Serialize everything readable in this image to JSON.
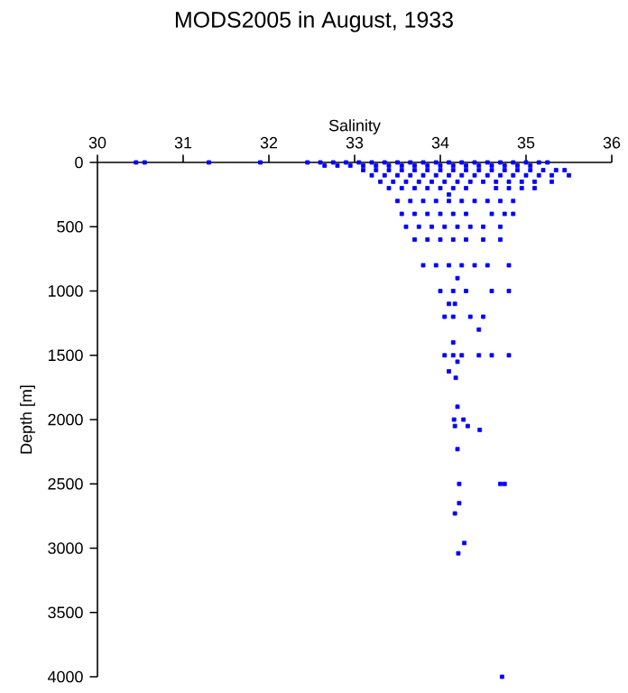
{
  "chart_data": {
    "type": "scatter",
    "title": "MODS2005 in August, 1933",
    "xlabel": "Salinity",
    "ylabel": "Depth [m]",
    "xlim": [
      30,
      36
    ],
    "ylim": [
      4000,
      0
    ],
    "xticks": [
      30,
      31,
      32,
      33,
      34,
      35,
      36
    ],
    "yticks": [
      0,
      500,
      1000,
      1500,
      2000,
      2500,
      3000,
      3500,
      4000
    ],
    "marker": "square",
    "color": "#0000ff",
    "x": [
      30.45,
      30.55,
      31.3,
      31.9,
      32.45,
      32.6,
      32.75,
      32.9,
      33.05,
      33.2,
      33.35,
      33.5,
      33.65,
      33.8,
      33.95,
      34.1,
      34.25,
      34.4,
      34.55,
      34.7,
      34.85,
      35.0,
      35.15,
      35.25,
      32.65,
      32.8,
      32.95,
      33.1,
      33.25,
      33.4,
      33.55,
      33.7,
      33.85,
      34.0,
      34.15,
      34.3,
      34.45,
      34.6,
      34.75,
      34.9,
      35.05,
      33.1,
      33.25,
      33.4,
      33.55,
      33.7,
      33.85,
      34.0,
      34.15,
      34.3,
      34.45,
      34.6,
      34.75,
      34.9,
      35.05,
      35.2,
      35.35,
      35.45,
      33.2,
      33.35,
      33.5,
      33.65,
      33.8,
      33.95,
      34.1,
      34.25,
      34.4,
      34.55,
      34.7,
      34.85,
      35.0,
      35.15,
      35.3,
      35.5,
      33.3,
      33.45,
      33.6,
      33.75,
      33.9,
      34.05,
      34.2,
      34.35,
      34.5,
      34.65,
      34.8,
      34.95,
      35.1,
      35.3,
      33.4,
      33.55,
      33.7,
      33.85,
      34.0,
      34.15,
      34.3,
      34.65,
      34.8,
      34.95,
      35.1,
      34.1,
      33.5,
      33.65,
      33.8,
      33.95,
      34.1,
      34.25,
      34.4,
      34.55,
      34.7,
      34.85,
      33.55,
      33.7,
      33.85,
      34.0,
      34.15,
      34.3,
      34.6,
      34.75,
      34.85,
      33.6,
      33.75,
      33.9,
      34.05,
      34.2,
      34.35,
      34.5,
      34.7,
      33.7,
      33.85,
      34.0,
      34.15,
      34.3,
      34.5,
      34.7,
      33.8,
      33.95,
      34.1,
      34.25,
      34.4,
      34.55,
      34.8,
      34.2,
      34.0,
      34.15,
      34.3,
      34.6,
      34.8,
      34.1,
      34.17,
      34.05,
      34.15,
      34.35,
      34.5,
      34.45,
      34.15,
      34.05,
      34.15,
      34.25,
      34.45,
      34.6,
      34.8,
      34.2,
      34.1,
      34.18,
      34.2,
      34.16,
      34.27,
      34.17,
      34.32,
      34.46,
      34.2,
      34.22,
      34.7,
      34.75,
      34.22,
      34.17,
      34.28,
      34.21,
      34.72
    ],
    "values": [
      0,
      0,
      0,
      0,
      0,
      0,
      0,
      0,
      0,
      0,
      0,
      0,
      0,
      0,
      0,
      0,
      0,
      0,
      0,
      0,
      0,
      0,
      0,
      0,
      25,
      25,
      25,
      25,
      25,
      25,
      25,
      25,
      25,
      25,
      25,
      25,
      25,
      25,
      25,
      25,
      25,
      60,
      60,
      60,
      60,
      60,
      60,
      60,
      60,
      60,
      60,
      60,
      60,
      60,
      60,
      60,
      60,
      60,
      100,
      100,
      100,
      100,
      100,
      100,
      100,
      100,
      100,
      100,
      100,
      100,
      100,
      100,
      100,
      100,
      150,
      150,
      150,
      150,
      150,
      150,
      150,
      150,
      150,
      150,
      150,
      150,
      150,
      150,
      200,
      200,
      200,
      200,
      200,
      200,
      200,
      200,
      200,
      200,
      200,
      250,
      300,
      300,
      300,
      300,
      300,
      300,
      300,
      300,
      300,
      300,
      400,
      400,
      400,
      400,
      400,
      400,
      400,
      400,
      400,
      500,
      500,
      500,
      500,
      500,
      500,
      500,
      500,
      600,
      600,
      600,
      600,
      600,
      600,
      600,
      800,
      800,
      800,
      800,
      800,
      800,
      800,
      900,
      1000,
      1000,
      1000,
      1000,
      1000,
      1100,
      1100,
      1200,
      1200,
      1200,
      1200,
      1300,
      1400,
      1500,
      1500,
      1500,
      1500,
      1500,
      1500,
      1550,
      1625,
      1675,
      1900,
      2000,
      2000,
      2050,
      2050,
      2080,
      2230,
      2500,
      2500,
      2500,
      2650,
      2730,
      2960,
      3040,
      4000
    ]
  }
}
